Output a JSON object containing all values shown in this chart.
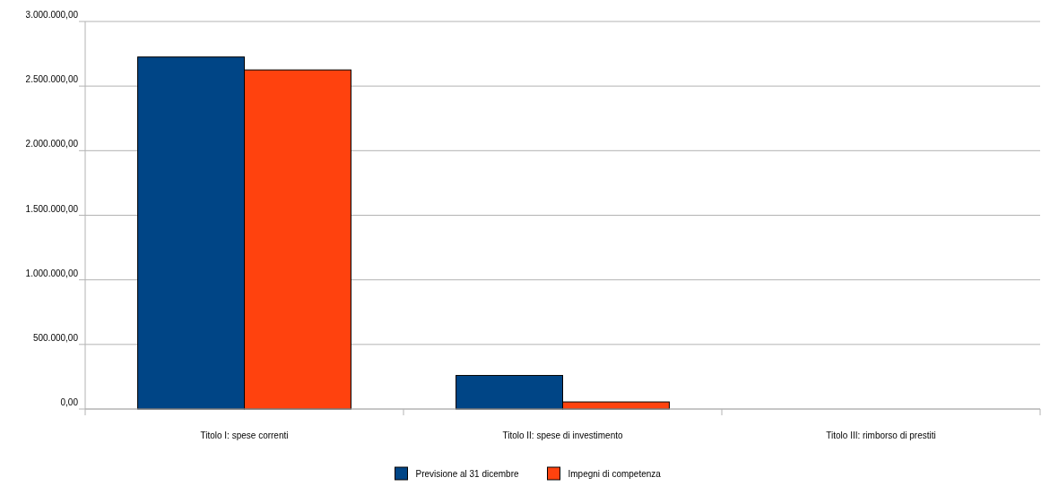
{
  "chart_data": {
    "type": "bar",
    "categories": [
      "Titolo I: spese correnti",
      "Titolo II: spese di investimento",
      "Titolo III: rimborso di prestiti"
    ],
    "series": [
      {
        "name": "Previsione al 31 dicembre",
        "color": "#004586",
        "values": [
          2725000,
          260000,
          0
        ]
      },
      {
        "name": "Impegni di competenza",
        "color": "#ff420e",
        "values": [
          2625000,
          55000,
          0
        ]
      }
    ],
    "ylim": [
      0,
      3000000
    ],
    "yticks": [
      {
        "value": 0,
        "label": "0,00"
      },
      {
        "value": 500000,
        "label": "500.000,00"
      },
      {
        "value": 1000000,
        "label": "1.000.000,00"
      },
      {
        "value": 1500000,
        "label": "1.500.000,00"
      },
      {
        "value": 2000000,
        "label": "2.000.000,00"
      },
      {
        "value": 2500000,
        "label": "2.500.000,00"
      },
      {
        "value": 3000000,
        "label": "3.000.000,00"
      }
    ],
    "grid": "y",
    "legend": "bottom"
  }
}
